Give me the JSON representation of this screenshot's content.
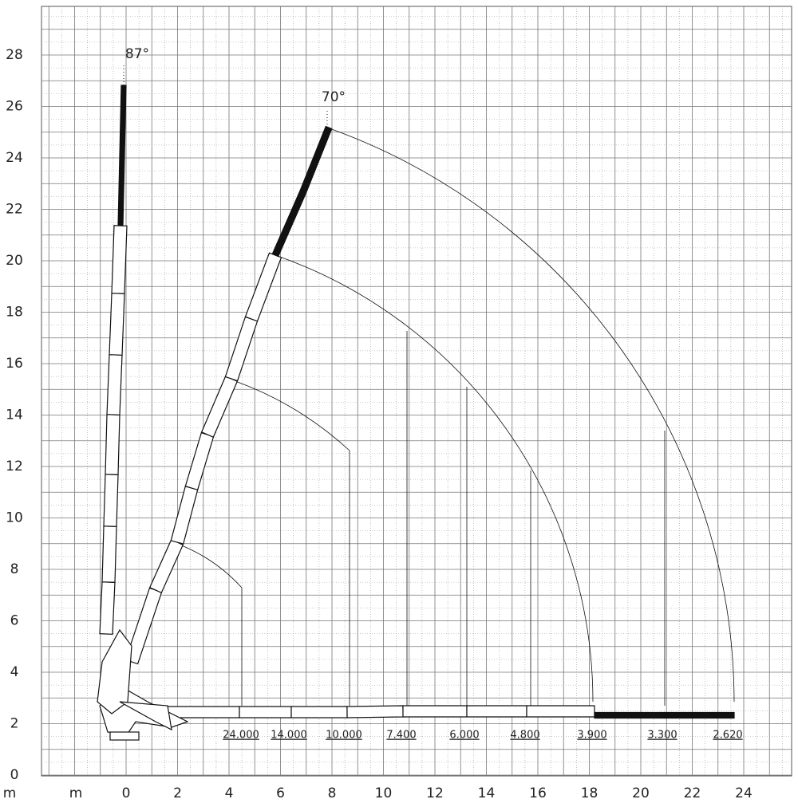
{
  "y_axis": {
    "unit": "m",
    "ticks": [
      0,
      2,
      4,
      6,
      8,
      10,
      12,
      14,
      16,
      18,
      20,
      22,
      24,
      26,
      28
    ]
  },
  "x_axis": {
    "unit": "m",
    "ticks": [
      0,
      2,
      4,
      6,
      8,
      10,
      12,
      14,
      16,
      18,
      20,
      22,
      24
    ]
  },
  "angles": [
    "87°",
    "70°"
  ],
  "loads": [
    "24.000",
    "14.000",
    "10.000",
    "7.400",
    "6.000",
    "4.800",
    "3.900",
    "3.300",
    "2.620"
  ]
}
